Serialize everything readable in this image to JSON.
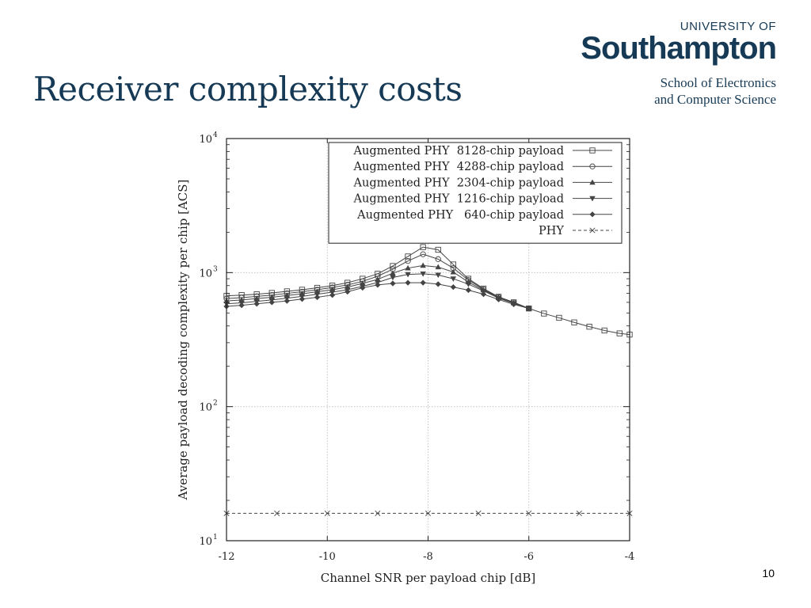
{
  "slide": {
    "title": "Receiver complexity costs",
    "page_number": "10"
  },
  "logo": {
    "line1": "UNIVERSITY OF",
    "brand": "Southampton",
    "school_line1": "School of Electronics",
    "school_line2": "and Computer Science"
  },
  "chart_data": {
    "type": "line",
    "title": "",
    "xlabel": "Channel SNR per payload chip [dB]",
    "ylabel": "Average payload decoding complexity per chip [ACS]",
    "xlim": [
      -12,
      -4
    ],
    "ylim": [
      10,
      10000
    ],
    "yscale": "log",
    "grid": true,
    "legend_position": "top-right",
    "x_ticks": [
      "-12",
      "-10",
      "-8",
      "-6",
      "-4"
    ],
    "x_tick_values": [
      -12,
      -10,
      -8,
      -6,
      -4
    ],
    "y_ticks": [
      {
        "base": "10",
        "exp": "1",
        "value": 10
      },
      {
        "base": "10",
        "exp": "2",
        "value": 100
      },
      {
        "base": "10",
        "exp": "3",
        "value": 1000
      },
      {
        "base": "10",
        "exp": "4",
        "value": 10000
      }
    ],
    "series": [
      {
        "name": "Augmented PHY  8128-chip payload",
        "marker": "square",
        "dash": "solid",
        "x": [
          -12,
          -11.7,
          -11.4,
          -11.1,
          -10.8,
          -10.5,
          -10.2,
          -9.9,
          -9.6,
          -9.3,
          -9.0,
          -8.7,
          -8.4,
          -8.1,
          -7.8,
          -7.5,
          -7.2,
          -6.9,
          -6.6,
          -6.3,
          -6.0,
          -5.7,
          -5.4,
          -5.1,
          -4.8,
          -4.5,
          -4.2,
          -4.0
        ],
        "y": [
          670,
          680,
          690,
          705,
          725,
          745,
          770,
          800,
          840,
          900,
          980,
          1120,
          1320,
          1550,
          1480,
          1150,
          900,
          760,
          660,
          600,
          540,
          495,
          460,
          425,
          395,
          370,
          352,
          345
        ]
      },
      {
        "name": "Augmented PHY  4288-chip payload",
        "marker": "circle",
        "dash": "solid",
        "x": [
          -12,
          -11.7,
          -11.4,
          -11.1,
          -10.8,
          -10.5,
          -10.2,
          -9.9,
          -9.6,
          -9.3,
          -9.0,
          -8.7,
          -8.4,
          -8.1,
          -7.8,
          -7.5,
          -7.2,
          -6.9,
          -6.6,
          -6.3,
          -6.0
        ],
        "y": [
          640,
          650,
          665,
          680,
          700,
          720,
          745,
          775,
          810,
          860,
          940,
          1060,
          1220,
          1370,
          1260,
          1080,
          880,
          750,
          655,
          600,
          540
        ]
      },
      {
        "name": "Augmented PHY  2304-chip payload",
        "marker": "triangle-up",
        "dash": "solid",
        "x": [
          -12,
          -11.7,
          -11.4,
          -11.1,
          -10.8,
          -10.5,
          -10.2,
          -9.9,
          -9.6,
          -9.3,
          -9.0,
          -8.7,
          -8.4,
          -8.1,
          -7.8,
          -7.5,
          -7.2,
          -6.9,
          -6.6,
          -6.3,
          -6.0
        ],
        "y": [
          615,
          625,
          640,
          655,
          675,
          695,
          720,
          745,
          780,
          830,
          890,
          990,
          1080,
          1130,
          1100,
          1010,
          850,
          740,
          650,
          595,
          540
        ]
      },
      {
        "name": "Augmented PHY  1216-chip payload",
        "marker": "triangle-down",
        "dash": "solid",
        "x": [
          -12,
          -11.7,
          -11.4,
          -11.1,
          -10.8,
          -10.5,
          -10.2,
          -9.9,
          -9.6,
          -9.3,
          -9.0,
          -8.7,
          -8.4,
          -8.1,
          -7.8,
          -7.5,
          -7.2,
          -6.9,
          -6.6,
          -6.3,
          -6.0
        ],
        "y": [
          585,
          595,
          610,
          625,
          645,
          665,
          690,
          715,
          745,
          790,
          845,
          920,
          970,
          980,
          960,
          900,
          820,
          730,
          645,
          590,
          540
        ]
      },
      {
        "name": "Augmented PHY   640-chip payload",
        "marker": "diamond",
        "dash": "solid",
        "x": [
          -12,
          -11.7,
          -11.4,
          -11.1,
          -10.8,
          -10.5,
          -10.2,
          -9.9,
          -9.6,
          -9.3,
          -9.0,
          -8.7,
          -8.4,
          -8.1,
          -7.8,
          -7.5,
          -7.2,
          -6.9,
          -6.6,
          -6.3,
          -6.0
        ],
        "y": [
          560,
          570,
          585,
          600,
          615,
          635,
          655,
          680,
          720,
          770,
          810,
          830,
          840,
          840,
          820,
          780,
          740,
          690,
          630,
          580,
          540
        ]
      },
      {
        "name": "PHY",
        "marker": "cross",
        "dash": "dashed",
        "x": [
          -12,
          -11,
          -10,
          -9,
          -8,
          -7,
          -6,
          -5,
          -4
        ],
        "y": [
          16,
          16,
          16,
          16,
          16,
          16,
          16,
          16,
          16
        ]
      }
    ]
  },
  "colors": {
    "title": "#163a55",
    "plot_line": "#444444",
    "grid": "#b8b8b8",
    "frame": "#222222"
  }
}
